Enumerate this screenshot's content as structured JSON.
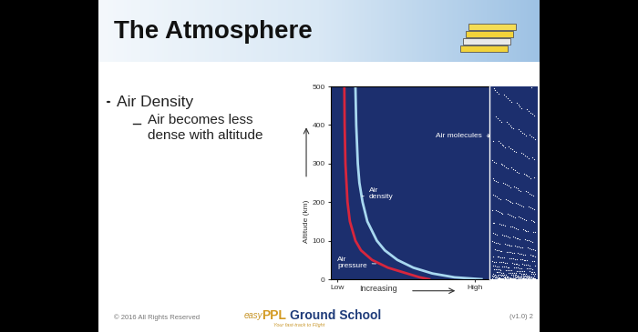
{
  "slide": {
    "title": "The Atmosphere",
    "bullets": [
      {
        "text": "Air Density",
        "sub": [
          "Air becomes less",
          "dense with altitude"
        ]
      }
    ],
    "footer": {
      "copyright": "© 2016 All Rights Reserved",
      "version": "(v1.0) 2",
      "logo": [
        "easy",
        "PPL",
        "Ground School"
      ],
      "tagline": "Your fast-track to Flight"
    }
  },
  "chart_data": {
    "type": "line",
    "x_label": "Increasing",
    "y_label": "Altitude (km)",
    "xlim": [
      0,
      100
    ],
    "xticks": [
      {
        "value": 4,
        "label": "Low"
      },
      {
        "value": 91,
        "label": "High"
      }
    ],
    "ylim": [
      0,
      500
    ],
    "yticks": [
      0,
      100,
      200,
      300,
      400,
      500
    ],
    "series": [
      {
        "name": "Air density",
        "color": "#a8d8f0",
        "x": [
          15.5,
          16,
          17,
          18,
          20,
          23,
          29,
          34,
          42,
          52,
          64,
          78,
          95
        ],
        "values": [
          500,
          400,
          300,
          250,
          200,
          150,
          100,
          75,
          50,
          30,
          15,
          5,
          0
        ]
      },
      {
        "name": "Air pressure",
        "color": "#d7263d",
        "x": [
          8.5,
          8.7,
          9.2,
          10.5,
          12,
          15.5,
          19,
          26,
          36,
          48,
          56,
          62
        ],
        "values": [
          500,
          400,
          300,
          200,
          150,
          100,
          75,
          50,
          30,
          15,
          5,
          0
        ]
      }
    ],
    "annotations": [
      "Air molecules"
    ]
  }
}
